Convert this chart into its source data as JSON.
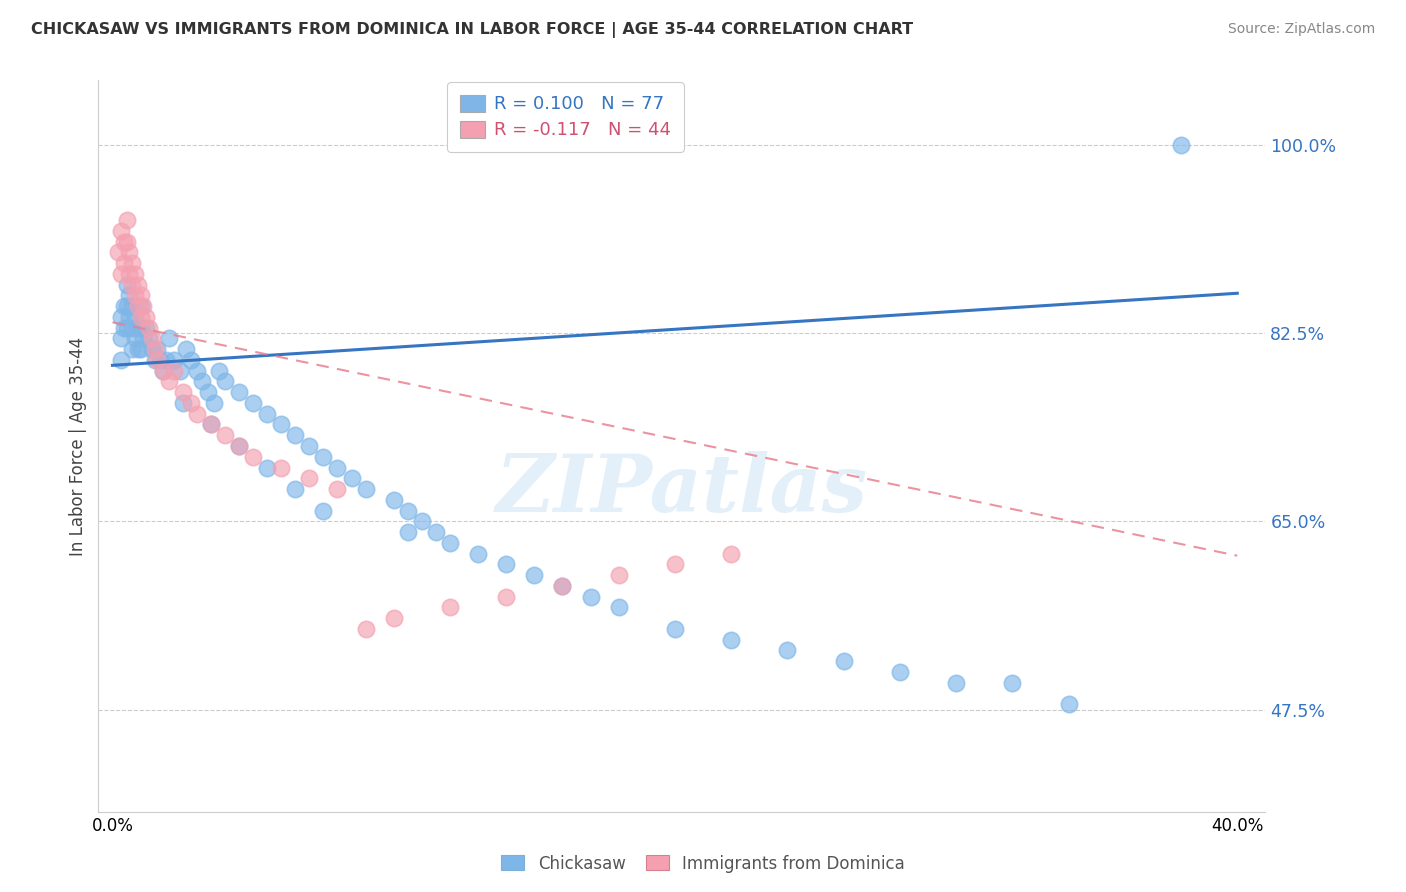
{
  "title": "CHICKASAW VS IMMIGRANTS FROM DOMINICA IN LABOR FORCE | AGE 35-44 CORRELATION CHART",
  "source": "Source: ZipAtlas.com",
  "ylabel": "In Labor Force | Age 35-44",
  "xlim": [
    -0.005,
    0.41
  ],
  "ylim": [
    0.38,
    1.06
  ],
  "ytick_vals": [
    0.475,
    0.65,
    0.825,
    1.0
  ],
  "ytick_labels": [
    "47.5%",
    "65.0%",
    "82.5%",
    "100.0%"
  ],
  "xtick_vals": [
    0.0,
    0.4
  ],
  "xtick_labels": [
    "0.0%",
    "40.0%"
  ],
  "color_blue": "#7EB6E8",
  "color_pink": "#F4A0B0",
  "color_blue_line": "#3575C2",
  "color_pink_line": "#E88090",
  "watermark": "ZIPatlas",
  "legend_r1": "R = 0.100",
  "legend_n1": "N = 77",
  "legend_r2": "R = -0.117",
  "legend_n2": "N = 44",
  "blue_trendline_y0": 0.795,
  "blue_trendline_y1": 0.862,
  "pink_trendline_y0": 0.835,
  "pink_trendline_y1": 0.618,
  "chickasaw_x": [
    0.003,
    0.003,
    0.003,
    0.004,
    0.004,
    0.005,
    0.005,
    0.005,
    0.006,
    0.006,
    0.007,
    0.007,
    0.007,
    0.008,
    0.008,
    0.009,
    0.009,
    0.01,
    0.01,
    0.01,
    0.011,
    0.012,
    0.013,
    0.014,
    0.015,
    0.016,
    0.017,
    0.018,
    0.019,
    0.02,
    0.022,
    0.024,
    0.026,
    0.028,
    0.03,
    0.032,
    0.034,
    0.036,
    0.038,
    0.04,
    0.045,
    0.05,
    0.055,
    0.06,
    0.065,
    0.07,
    0.075,
    0.08,
    0.085,
    0.09,
    0.1,
    0.105,
    0.11,
    0.115,
    0.12,
    0.13,
    0.14,
    0.15,
    0.16,
    0.17,
    0.18,
    0.2,
    0.22,
    0.24,
    0.26,
    0.28,
    0.3,
    0.32,
    0.34,
    0.38,
    0.025,
    0.035,
    0.045,
    0.055,
    0.065,
    0.075,
    0.105
  ],
  "chickasaw_y": [
    0.84,
    0.82,
    0.8,
    0.85,
    0.83,
    0.87,
    0.85,
    0.83,
    0.86,
    0.84,
    0.85,
    0.83,
    0.81,
    0.84,
    0.82,
    0.83,
    0.81,
    0.85,
    0.83,
    0.81,
    0.82,
    0.83,
    0.82,
    0.81,
    0.8,
    0.81,
    0.8,
    0.79,
    0.8,
    0.82,
    0.8,
    0.79,
    0.81,
    0.8,
    0.79,
    0.78,
    0.77,
    0.76,
    0.79,
    0.78,
    0.77,
    0.76,
    0.75,
    0.74,
    0.73,
    0.72,
    0.71,
    0.7,
    0.69,
    0.68,
    0.67,
    0.66,
    0.65,
    0.64,
    0.63,
    0.62,
    0.61,
    0.6,
    0.59,
    0.58,
    0.57,
    0.55,
    0.54,
    0.53,
    0.52,
    0.51,
    0.5,
    0.5,
    0.48,
    1.0,
    0.76,
    0.74,
    0.72,
    0.7,
    0.68,
    0.66,
    0.64
  ],
  "dominica_x": [
    0.002,
    0.003,
    0.003,
    0.004,
    0.004,
    0.005,
    0.005,
    0.006,
    0.006,
    0.007,
    0.007,
    0.008,
    0.008,
    0.009,
    0.009,
    0.01,
    0.01,
    0.011,
    0.012,
    0.013,
    0.014,
    0.015,
    0.016,
    0.018,
    0.02,
    0.022,
    0.025,
    0.028,
    0.03,
    0.035,
    0.04,
    0.045,
    0.05,
    0.06,
    0.07,
    0.08,
    0.09,
    0.1,
    0.12,
    0.14,
    0.16,
    0.18,
    0.2,
    0.22
  ],
  "dominica_y": [
    0.9,
    0.92,
    0.88,
    0.91,
    0.89,
    0.93,
    0.91,
    0.9,
    0.88,
    0.89,
    0.87,
    0.88,
    0.86,
    0.87,
    0.85,
    0.86,
    0.84,
    0.85,
    0.84,
    0.83,
    0.82,
    0.81,
    0.8,
    0.79,
    0.78,
    0.79,
    0.77,
    0.76,
    0.75,
    0.74,
    0.73,
    0.72,
    0.71,
    0.7,
    0.69,
    0.68,
    0.55,
    0.56,
    0.57,
    0.58,
    0.59,
    0.6,
    0.61,
    0.62
  ]
}
